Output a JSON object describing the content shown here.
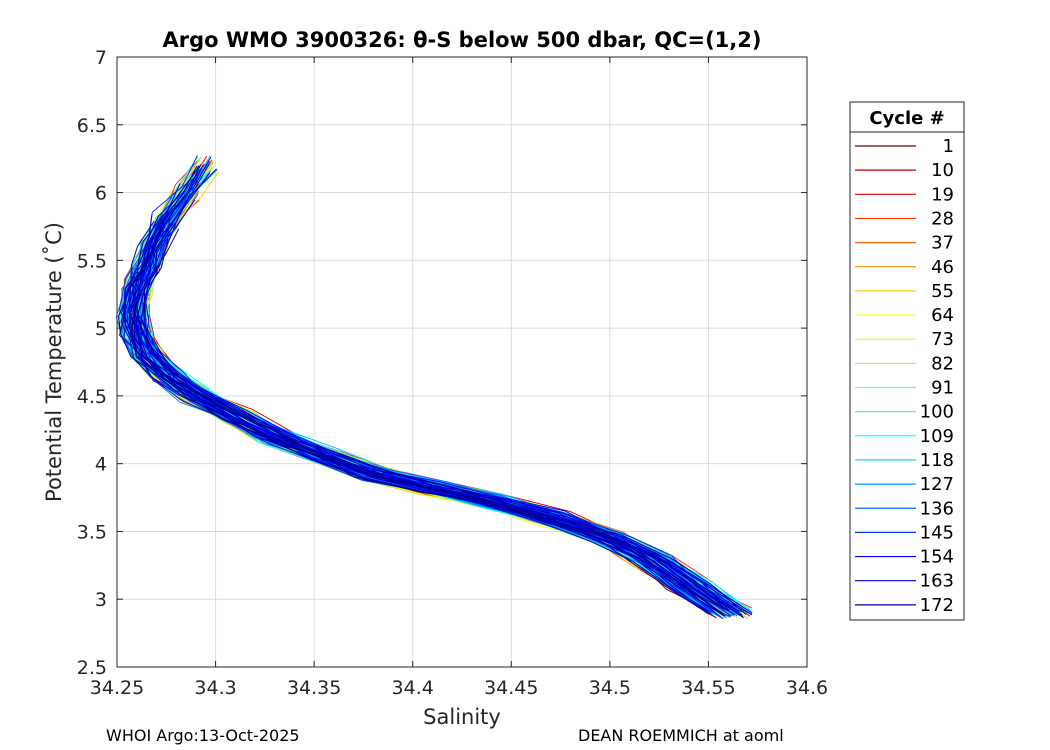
{
  "chart_data": {
    "type": "line",
    "title": "Argo WMO 3900326: θ-S below 500 dbar,  QC=(1,2)",
    "xlabel": "Salinity",
    "ylabel": "Potential Temperature (˚C)",
    "xlim": [
      34.25,
      34.6
    ],
    "ylim": [
      2.5,
      7
    ],
    "xticks": [
      "34.25",
      "34.3",
      "34.35",
      "34.4",
      "34.45",
      "34.5",
      "34.55",
      "34.6"
    ],
    "yticks": [
      "2.5",
      "3",
      "3.5",
      "4",
      "4.5",
      "5",
      "5.5",
      "6",
      "6.5",
      "7"
    ],
    "grid": true,
    "legend_title": "Cycle #",
    "legend_position": "right-outside",
    "series": [
      {
        "name": "1",
        "color": "#800000"
      },
      {
        "name": "10",
        "color": "#b40000"
      },
      {
        "name": "19",
        "color": "#e60000"
      },
      {
        "name": "28",
        "color": "#ff3300"
      },
      {
        "name": "37",
        "color": "#ff6600"
      },
      {
        "name": "46",
        "color": "#ff9900"
      },
      {
        "name": "55",
        "color": "#ffcc00"
      },
      {
        "name": "64",
        "color": "#ffff00"
      },
      {
        "name": "73",
        "color": "#ccff33"
      },
      {
        "name": "82",
        "color": "#99ff66"
      },
      {
        "name": "91",
        "color": "#66ff99"
      },
      {
        "name": "100",
        "color": "#33ffcc"
      },
      {
        "name": "109",
        "color": "#00ffff"
      },
      {
        "name": "118",
        "color": "#00ccff"
      },
      {
        "name": "127",
        "color": "#0099ff"
      },
      {
        "name": "136",
        "color": "#0066ff"
      },
      {
        "name": "145",
        "color": "#0033ff"
      },
      {
        "name": "154",
        "color": "#0000ff"
      },
      {
        "name": "163",
        "color": "#0000cc"
      },
      {
        "name": "172",
        "color": "#000099"
      }
    ],
    "base_profile": {
      "salinity": [
        34.303,
        34.295,
        34.285,
        34.275,
        34.268,
        34.265,
        34.26,
        34.258,
        34.26,
        34.265,
        34.275,
        34.29,
        34.31,
        34.33,
        34.355,
        34.38,
        34.41,
        34.44,
        34.47,
        34.5,
        34.52,
        34.54,
        34.56
      ],
      "theta": [
        6.4,
        6.2,
        6.0,
        5.8,
        5.6,
        5.45,
        5.3,
        5.1,
        4.95,
        4.8,
        4.65,
        4.5,
        4.35,
        4.2,
        4.05,
        3.92,
        3.82,
        3.72,
        3.6,
        3.45,
        3.3,
        3.1,
        2.9
      ]
    }
  },
  "footer": {
    "left": "WHOI Argo:13-Oct-2025",
    "right": "DEAN ROEMMICH at aoml"
  }
}
